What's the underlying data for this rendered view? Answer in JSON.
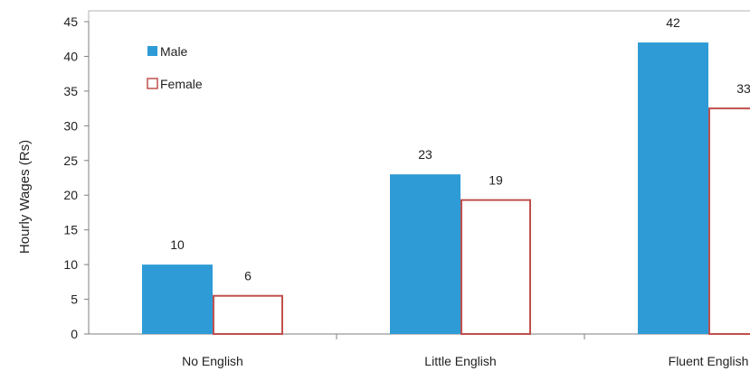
{
  "chart_data": {
    "type": "bar",
    "categories": [
      "No English",
      "Little English",
      "Fluent English"
    ],
    "series": [
      {
        "name": "Male",
        "values": [
          10,
          23,
          42
        ],
        "data_labels": [
          "10",
          "23",
          "42"
        ],
        "color": "#2e9bd6",
        "style": "filled"
      },
      {
        "name": "Female",
        "values": [
          5.5,
          19.3,
          32.5
        ],
        "data_labels": [
          "6",
          "19",
          "33"
        ],
        "color": "#c0504d",
        "style": "outline"
      }
    ],
    "ylabel": "Hourly Wages (Rs)",
    "ylim": [
      0,
      45
    ],
    "yticks": [
      0,
      5,
      10,
      15,
      20,
      25,
      30,
      35,
      40,
      45
    ],
    "grid": false,
    "legend_position": "top-left"
  }
}
